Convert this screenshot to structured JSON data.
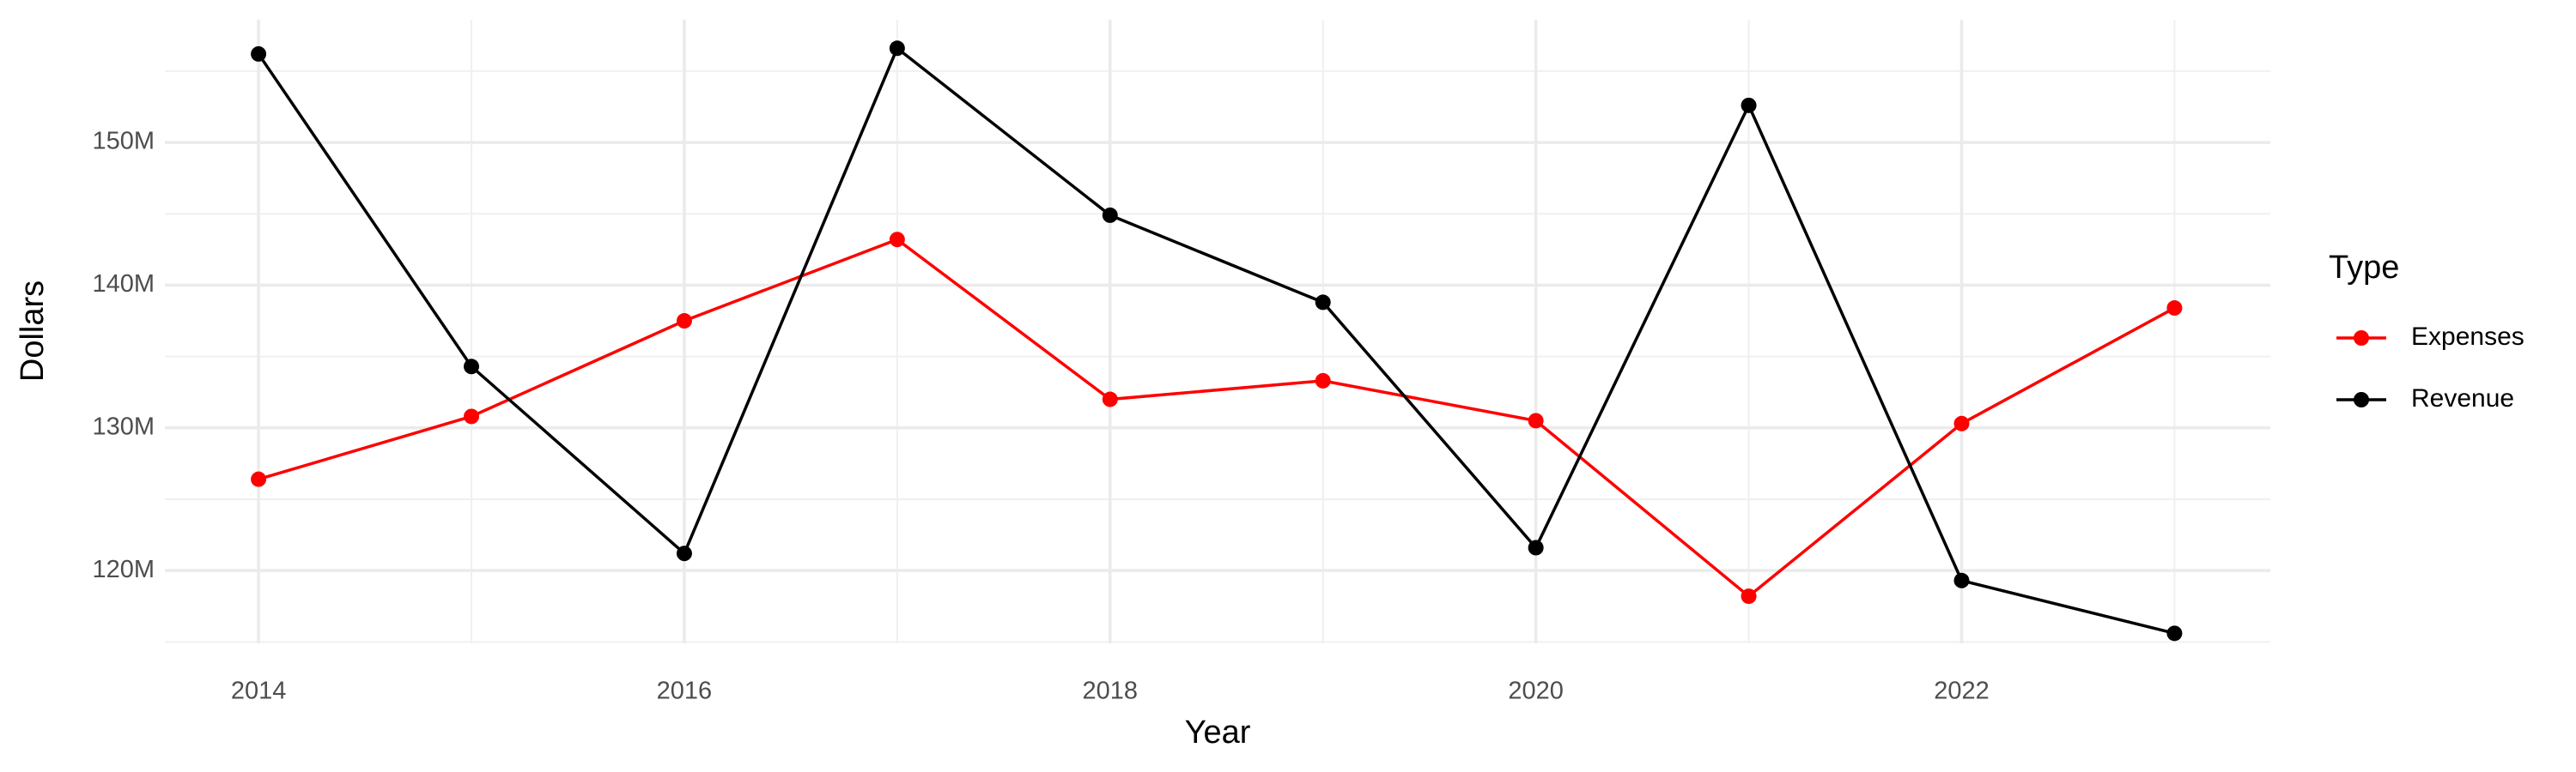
{
  "chart_data": {
    "type": "line",
    "x_label": "Year",
    "y_label": "Dollars",
    "legend_title": "Type",
    "x": [
      2014,
      2015,
      2016,
      2017,
      2018,
      2019,
      2020,
      2021,
      2022,
      2023
    ],
    "series": [
      {
        "name": "Expenses",
        "color": "#ff0000",
        "values": [
          126400000,
          130800000,
          137500000,
          143200000,
          132000000,
          133300000,
          130500000,
          118200000,
          130300000,
          138400000
        ]
      },
      {
        "name": "Revenue",
        "color": "#000000",
        "values": [
          156200000,
          134300000,
          121200000,
          156600000,
          144900000,
          138800000,
          121600000,
          152600000,
          119300000,
          115600000
        ]
      }
    ],
    "xlim": [
      2013.56,
      2023.45
    ],
    "xticks": [
      2014,
      2016,
      2018,
      2020,
      2022
    ],
    "x_minor_ticks": [
      2015,
      2017,
      2019,
      2021,
      2023
    ],
    "ylim": [
      114900000,
      158600000
    ],
    "yticks": [
      {
        "value": 120000000,
        "label": "120M"
      },
      {
        "value": 130000000,
        "label": "130M"
      },
      {
        "value": 140000000,
        "label": "140M"
      },
      {
        "value": 150000000,
        "label": "150M"
      }
    ],
    "y_minor_ticks": [
      115000000,
      125000000,
      135000000,
      145000000,
      155000000
    ],
    "grid": true,
    "legend": "right"
  }
}
